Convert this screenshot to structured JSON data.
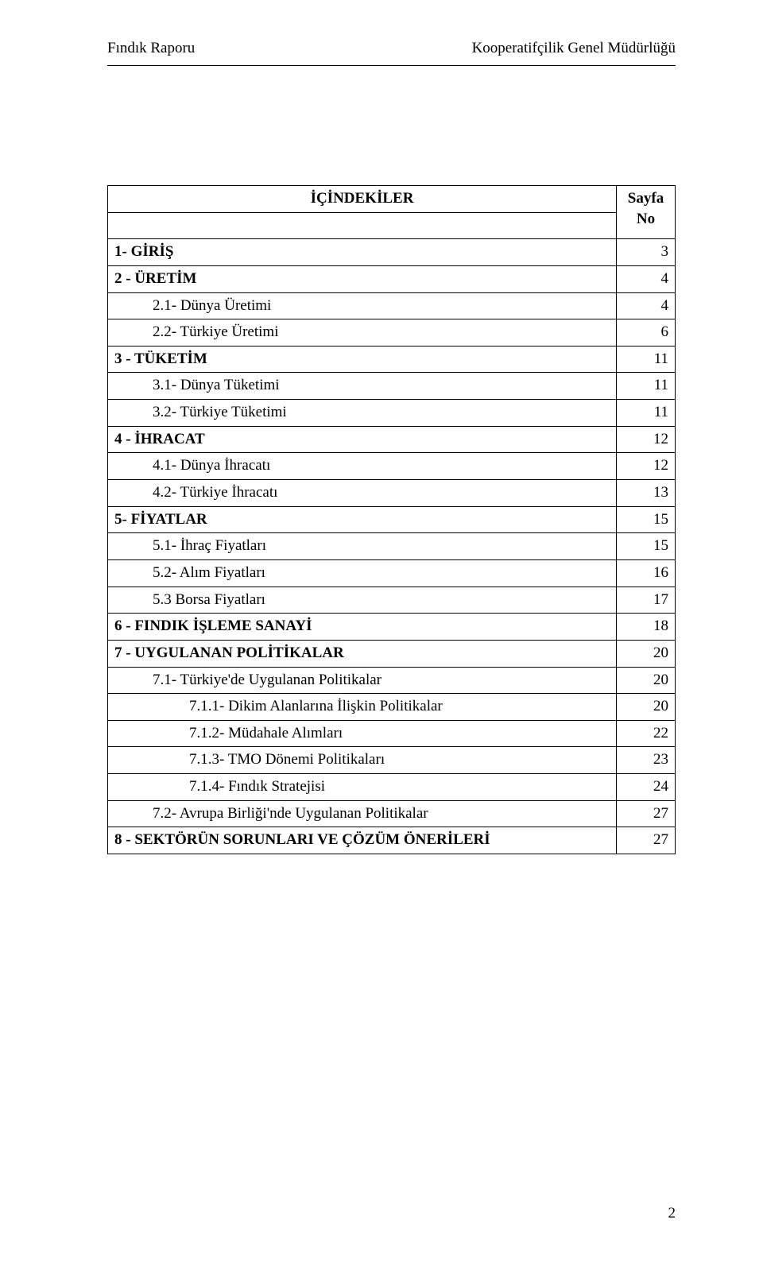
{
  "header": {
    "left": "Fındık Raporu",
    "right": "Kooperatifçilik Genel Müdürlüğü"
  },
  "toc": {
    "title": "İÇİNDEKİLER",
    "page_header": "Sayfa No",
    "rows": [
      {
        "label": "1- GİRİŞ",
        "page": "3",
        "bold": true,
        "indent": 0
      },
      {
        "label": "2 - ÜRETİM",
        "page": "4",
        "bold": true,
        "indent": 0
      },
      {
        "label": "2.1- Dünya Üretimi",
        "page": "4",
        "bold": false,
        "indent": 1
      },
      {
        "label": "2.2- Türkiye Üretimi",
        "page": "6",
        "bold": false,
        "indent": 1
      },
      {
        "label": "3 - TÜKETİM",
        "page": "11",
        "bold": true,
        "indent": 0
      },
      {
        "label": "3.1- Dünya Tüketimi",
        "page": "11",
        "bold": false,
        "indent": 1
      },
      {
        "label": "3.2- Türkiye Tüketimi",
        "page": "11",
        "bold": false,
        "indent": 1
      },
      {
        "label": "4 - İHRACAT",
        "page": "12",
        "bold": true,
        "indent": 0
      },
      {
        "label": "4.1- Dünya İhracatı",
        "page": "12",
        "bold": false,
        "indent": 1
      },
      {
        "label": "4.2- Türkiye İhracatı",
        "page": "13",
        "bold": false,
        "indent": 1
      },
      {
        "label": "5- FİYATLAR",
        "page": "15",
        "bold": true,
        "indent": 0
      },
      {
        "label": "5.1- İhraç Fiyatları",
        "page": "15",
        "bold": false,
        "indent": 1
      },
      {
        "label": "5.2- Alım Fiyatları",
        "page": "16",
        "bold": false,
        "indent": 1
      },
      {
        "label": "5.3 Borsa Fiyatları",
        "page": "17",
        "bold": false,
        "indent": 1
      },
      {
        "label": "6 - FINDIK İŞLEME SANAYİ",
        "page": "18",
        "bold": true,
        "indent": 0
      },
      {
        "label": "7 -  UYGULANAN POLİTİKALAR",
        "page": "20",
        "bold": true,
        "indent": 0
      },
      {
        "label": "7.1- Türkiye'de Uygulanan Politikalar",
        "page": "20",
        "bold": false,
        "indent": 1
      },
      {
        "label": "7.1.1- Dikim Alanlarına İlişkin Politikalar",
        "page": "20",
        "bold": false,
        "indent": 2
      },
      {
        "label": "7.1.2- Müdahale Alımları",
        "page": "22",
        "bold": false,
        "indent": 2
      },
      {
        "label": "7.1.3- TMO Dönemi Politikaları",
        "page": "23",
        "bold": false,
        "indent": 2
      },
      {
        "label": "7.1.4- Fındık Stratejisi",
        "page": "24",
        "bold": false,
        "indent": 2
      },
      {
        "label": "7.2- Avrupa Birliği'nde Uygulanan Politikalar",
        "page": "27",
        "bold": false,
        "indent": 1
      },
      {
        "label": "8 - SEKTÖRÜN SORUNLARI VE ÇÖZÜM ÖNERİLERİ",
        "page": "27",
        "bold": true,
        "indent": 0
      }
    ]
  },
  "footer": {
    "page_number": "2"
  }
}
